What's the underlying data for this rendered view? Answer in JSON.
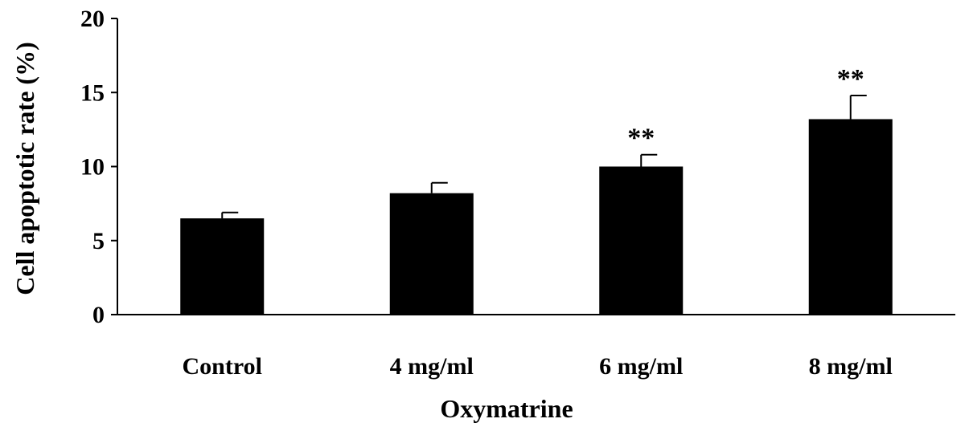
{
  "chart_data": {
    "type": "bar",
    "categories": [
      "Control",
      "4 mg/ml",
      "6 mg/ml",
      "8 mg/ml"
    ],
    "values": [
      6.5,
      8.2,
      10.0,
      13.2
    ],
    "errors": [
      0.4,
      0.7,
      0.8,
      1.6
    ],
    "annotations": [
      "",
      "",
      "**",
      "**"
    ],
    "xlabel": "Oxymatrine",
    "ylabel": "Cell apoptotic rate (%)",
    "ylim": [
      0,
      20
    ],
    "yticks": [
      "0",
      "5",
      "10",
      "15",
      "20"
    ],
    "grid": false,
    "bar_color": "#000000"
  }
}
